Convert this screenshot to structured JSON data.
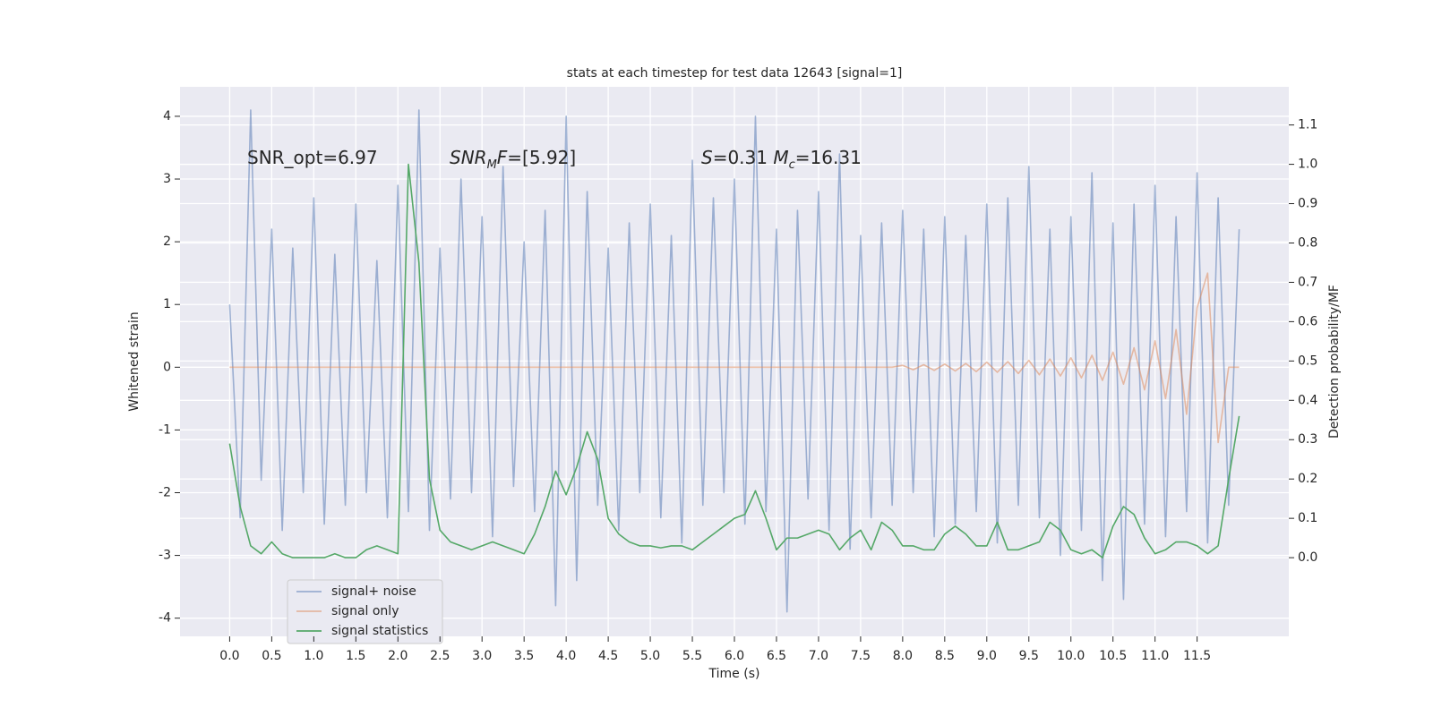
{
  "chart_data": {
    "type": "line",
    "title": "stats at each timestep for test data 12643 [signal=1]",
    "x_label": "Time (s)",
    "y_label": "Whitened strain",
    "y2_label": "Detection probability/MF",
    "xlim": [
      -0.59,
      12.59
    ],
    "ylim": [
      -4.29,
      4.47
    ],
    "y2lim": [
      -0.2,
      1.197
    ],
    "xticks": [
      {
        "value": 0,
        "label": "0.0"
      },
      0.5,
      {
        "value": 1,
        "label": "1.0"
      },
      1.5,
      {
        "value": 2,
        "label": "2.0"
      },
      2.5,
      {
        "value": 3,
        "label": "3.0"
      },
      3.5,
      {
        "value": 4,
        "label": "4.0"
      },
      4.5,
      {
        "value": 5,
        "label": "5.0"
      },
      5.5,
      {
        "value": 6,
        "label": "6.0"
      },
      6.5,
      {
        "value": 7,
        "label": "7.0"
      },
      7.5,
      {
        "value": 8,
        "label": "8.0"
      },
      8.5,
      {
        "value": 9,
        "label": "9.0"
      },
      9.5,
      {
        "value": 10,
        "label": "10.0"
      },
      10.5,
      {
        "value": 11,
        "label": "11.0"
      },
      11.5
    ],
    "yticks": [
      -4,
      -3,
      -2,
      -1,
      0,
      1,
      2,
      3,
      4
    ],
    "y2ticks": [
      {
        "value": 0,
        "label": "0.0"
      },
      0.1,
      0.2,
      0.3,
      0.4,
      0.5,
      0.6,
      0.7,
      0.8,
      0.9,
      {
        "value": 1,
        "label": "1.0"
      },
      1.1
    ],
    "grid": true,
    "annotations": [
      [
        {
          "text": "SNR_opt=6.97"
        }
      ],
      [
        {
          "text": "SNR",
          "italic": true
        },
        {
          "text": "M",
          "italic": true,
          "subscript": true
        },
        {
          "text": "F",
          "italic": true
        },
        {
          "text": "=[5.92]"
        }
      ],
      [
        {
          "text": "S",
          "italic": true
        },
        {
          "text": "=0.31   "
        },
        {
          "text": "M",
          "italic": true
        },
        {
          "text": "c",
          "italic": true,
          "subscript": true
        },
        {
          "text": "=16.31"
        }
      ]
    ],
    "x": [
      0,
      0.125,
      0.25,
      0.375,
      0.5,
      0.625,
      0.75,
      0.875,
      1,
      1.125,
      1.25,
      1.375,
      1.5,
      1.625,
      1.75,
      1.875,
      2,
      2.125,
      2.25,
      2.375,
      2.5,
      2.625,
      2.75,
      2.875,
      3,
      3.125,
      3.25,
      3.375,
      3.5,
      3.625,
      3.75,
      3.875,
      4,
      4.125,
      4.25,
      4.375,
      4.5,
      4.625,
      4.75,
      4.875,
      5,
      5.125,
      5.25,
      5.375,
      5.5,
      5.625,
      5.75,
      5.875,
      6,
      6.125,
      6.25,
      6.375,
      6.5,
      6.625,
      6.75,
      6.875,
      7,
      7.125,
      7.25,
      7.375,
      7.5,
      7.625,
      7.75,
      7.875,
      8,
      8.125,
      8.25,
      8.375,
      8.5,
      8.625,
      8.75,
      8.875,
      9,
      9.125,
      9.25,
      9.375,
      9.5,
      9.625,
      9.75,
      9.875,
      10,
      10.125,
      10.25,
      10.375,
      10.5,
      10.625,
      10.75,
      10.875,
      11,
      11.125,
      11.25,
      11.375,
      11.5,
      11.625,
      11.75,
      11.875,
      12
    ],
    "series": [
      {
        "name": "signal+ noise",
        "color": "#4c72b0",
        "opacity": 0.5,
        "values": [
          1.0,
          -2.4,
          4.1,
          -1.8,
          2.2,
          -2.6,
          1.9,
          -2.0,
          2.7,
          -2.5,
          1.8,
          -2.2,
          2.6,
          -2.0,
          1.7,
          -2.4,
          2.9,
          -2.3,
          4.1,
          -2.6,
          1.9,
          -2.1,
          3.0,
          -2.0,
          2.4,
          -2.7,
          3.2,
          -1.9,
          2.0,
          -2.3,
          2.5,
          -3.8,
          4.0,
          -3.4,
          2.8,
          -2.2,
          1.9,
          -2.6,
          2.3,
          -2.0,
          2.6,
          -2.4,
          2.1,
          -2.8,
          3.3,
          -2.2,
          2.7,
          -2.0,
          3.0,
          -2.5,
          4.0,
          -2.3,
          2.2,
          -3.9,
          2.5,
          -2.1,
          2.8,
          -2.6,
          3.4,
          -2.9,
          2.1,
          -2.4,
          2.3,
          -2.2,
          2.5,
          -2.0,
          2.2,
          -2.7,
          2.4,
          -2.5,
          2.1,
          -2.3,
          2.6,
          -2.8,
          2.7,
          -2.2,
          3.2,
          -2.4,
          2.2,
          -3.0,
          2.4,
          -2.6,
          3.1,
          -3.4,
          2.3,
          -3.7,
          2.6,
          -2.5,
          2.9,
          -2.7,
          2.4,
          -2.3,
          3.1,
          -2.8,
          2.7,
          -2.2,
          2.2
        ]
      },
      {
        "name": "signal only",
        "color": "#dd8452",
        "opacity": 0.5,
        "values": [
          0,
          0,
          0,
          0,
          0,
          0,
          0,
          0,
          0,
          0,
          0,
          0,
          0,
          0,
          0,
          0,
          0,
          0,
          0,
          0,
          0,
          0,
          0,
          0,
          0,
          0,
          0,
          0,
          0,
          0,
          0,
          0,
          0,
          0,
          0,
          0,
          0,
          0,
          0,
          0,
          0,
          0,
          0,
          0,
          0,
          0,
          0,
          0,
          0,
          0,
          0,
          0,
          0,
          0,
          0,
          0,
          0,
          0,
          0,
          0,
          0,
          0,
          0,
          0,
          0.03,
          -0.04,
          0.04,
          -0.05,
          0.05,
          -0.06,
          0.06,
          -0.07,
          0.08,
          -0.08,
          0.09,
          -0.1,
          0.11,
          -0.12,
          0.13,
          -0.14,
          0.15,
          -0.17,
          0.19,
          -0.21,
          0.24,
          -0.27,
          0.31,
          -0.36,
          0.42,
          -0.5,
          0.6,
          -0.75,
          0.95,
          1.5,
          -1.2,
          0,
          0
        ]
      },
      {
        "name": "signal statistics",
        "color": "#55a868",
        "opacity": 1,
        "axis": "y2",
        "values": [
          0.29,
          0.13,
          0.03,
          0.01,
          0.04,
          0.01,
          0,
          0,
          0,
          0,
          0.01,
          0,
          0,
          0.02,
          0.03,
          0.02,
          0.01,
          1.0,
          0.75,
          0.2,
          0.07,
          0.04,
          0.03,
          0.02,
          0.03,
          0.04,
          0.03,
          0.02,
          0.01,
          0.06,
          0.13,
          0.22,
          0.16,
          0.23,
          0.32,
          0.25,
          0.1,
          0.06,
          0.04,
          0.03,
          0.03,
          0.025,
          0.03,
          0.03,
          0.02,
          0.04,
          0.06,
          0.08,
          0.1,
          0.11,
          0.17,
          0.1,
          0.02,
          0.05,
          0.05,
          0.06,
          0.07,
          0.06,
          0.02,
          0.05,
          0.07,
          0.02,
          0.09,
          0.07,
          0.03,
          0.03,
          0.02,
          0.02,
          0.06,
          0.08,
          0.06,
          0.03,
          0.03,
          0.09,
          0.02,
          0.02,
          0.03,
          0.04,
          0.09,
          0.07,
          0.02,
          0.01,
          0.02,
          0,
          0.08,
          0.13,
          0.11,
          0.05,
          0.01,
          0.02,
          0.04,
          0.04,
          0.03,
          0.01,
          0.03,
          0.2,
          0.36
        ]
      }
    ]
  }
}
